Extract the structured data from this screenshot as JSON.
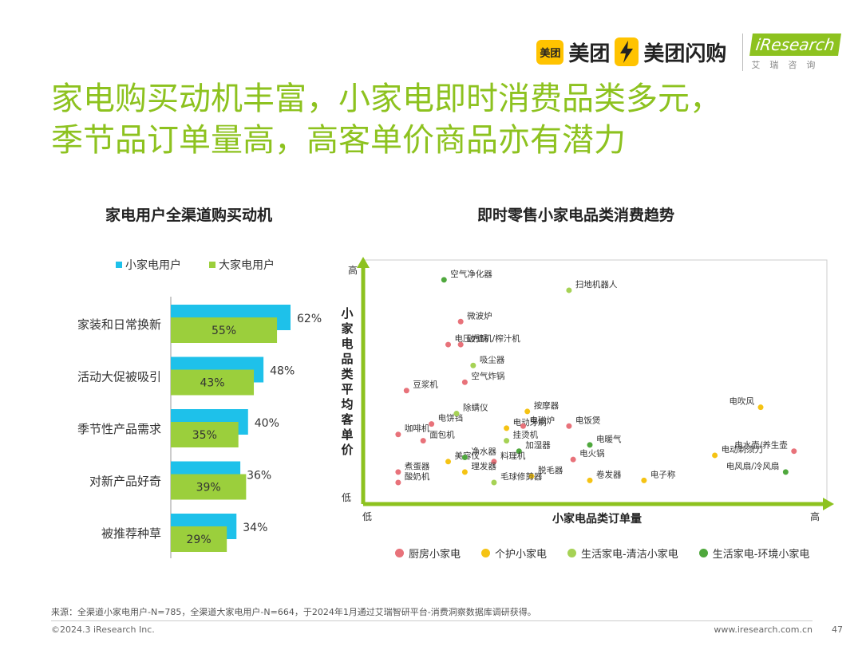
{
  "logos": {
    "meituan_badge": "美团",
    "meituan": "美团",
    "shangou": "美团闪购",
    "iresearch": "iResearch",
    "iresearch_sub": "艾瑞咨询"
  },
  "title_line1": "家电购买动机丰富，小家电即时消费品类多元，",
  "title_line2": "季节品订单量高，高客单价商品亦有潜力",
  "colors": {
    "accent": "#8dc21f",
    "small_appliance": "#1ec1ea",
    "large_appliance": "#9bcf3c",
    "kitchen": "#e8727a",
    "personal_care": "#f5c314",
    "life_clean": "#a6d255",
    "life_env": "#4fa83d"
  },
  "chart_data": [
    {
      "type": "bar",
      "title": "家电用户全渠道购买动机",
      "categories": [
        "家装和日常换新",
        "活动大促被吸引",
        "季节性产品需求",
        "对新产品好奇",
        "被推荐种草"
      ],
      "series": [
        {
          "name": "小家电用户",
          "values": [
            62,
            48,
            40,
            36,
            34
          ],
          "labels": [
            "62%",
            "48%",
            "40%",
            "36%",
            "34%"
          ]
        },
        {
          "name": "大家电用户",
          "values": [
            55,
            43,
            35,
            39,
            29
          ],
          "labels": [
            "55%",
            "43%",
            "35%",
            "39%",
            "29%"
          ]
        }
      ],
      "legend_position": "top-left"
    },
    {
      "type": "scatter",
      "title": "即时零售小家电品类消费趋势",
      "xlabel": "小家电品类订单量",
      "ylabel": "小家电品类平均客单价",
      "x_low": "低",
      "x_high": "高",
      "y_low": "低",
      "y_high": "高",
      "categories": [
        {
          "name": "厨房小家电",
          "key": "kitchen"
        },
        {
          "name": "个护小家电",
          "key": "personal_care"
        },
        {
          "name": "生活家电-清洁小家电",
          "key": "life_clean"
        },
        {
          "name": "生活家电-环境小家电",
          "key": "life_env"
        }
      ],
      "xlim": [
        0,
        100
      ],
      "ylim": [
        0,
        100
      ],
      "points": [
        {
          "label": "空气净化器",
          "cat": "life_env",
          "x": 15,
          "y": 97
        },
        {
          "label": "扫地机器人",
          "cat": "life_clean",
          "x": 45,
          "y": 92
        },
        {
          "label": "微波炉",
          "cat": "kitchen",
          "x": 19,
          "y": 77
        },
        {
          "label": "电压力锅",
          "cat": "kitchen",
          "x": 16,
          "y": 66
        },
        {
          "label": "破壁机/榨汁机",
          "cat": "kitchen",
          "x": 19,
          "y": 66
        },
        {
          "label": "吸尘器",
          "cat": "life_clean",
          "x": 22,
          "y": 56
        },
        {
          "label": "空气炸锅",
          "cat": "kitchen",
          "x": 20,
          "y": 48
        },
        {
          "label": "豆浆机",
          "cat": "kitchen",
          "x": 6,
          "y": 44
        },
        {
          "label": "按摩器",
          "cat": "personal_care",
          "x": 35,
          "y": 34
        },
        {
          "label": "电吹风",
          "cat": "personal_care",
          "x": 91,
          "y": 36
        },
        {
          "label": "电饼铛",
          "cat": "kitchen",
          "x": 12,
          "y": 28
        },
        {
          "label": "除螨仪",
          "cat": "life_clean",
          "x": 18,
          "y": 33
        },
        {
          "label": "咖啡机",
          "cat": "kitchen",
          "x": 4,
          "y": 23
        },
        {
          "label": "电动牙刷",
          "cat": "personal_care",
          "x": 30,
          "y": 26
        },
        {
          "label": "电磁炉",
          "cat": "kitchen",
          "x": 34,
          "y": 27
        },
        {
          "label": "电饭煲",
          "cat": "kitchen",
          "x": 45,
          "y": 27
        },
        {
          "label": "面包机",
          "cat": "kitchen",
          "x": 10,
          "y": 20
        },
        {
          "label": "挂烫机",
          "cat": "life_clean",
          "x": 30,
          "y": 20
        },
        {
          "label": "电暖气",
          "cat": "life_env",
          "x": 50,
          "y": 18
        },
        {
          "label": "电水壶/养生壶",
          "cat": "kitchen",
          "x": 99,
          "y": 15
        },
        {
          "label": "电动剃须刀",
          "cat": "personal_care",
          "x": 80,
          "y": 13
        },
        {
          "label": "美容仪",
          "cat": "personal_care",
          "x": 16,
          "y": 10
        },
        {
          "label": "净水器",
          "cat": "life_env",
          "x": 20,
          "y": 12
        },
        {
          "label": "加湿器",
          "cat": "life_env",
          "x": 33,
          "y": 15
        },
        {
          "label": "料理机",
          "cat": "kitchen",
          "x": 27,
          "y": 10
        },
        {
          "label": "电火锅",
          "cat": "kitchen",
          "x": 46,
          "y": 11
        },
        {
          "label": "煮蛋器",
          "cat": "kitchen",
          "x": 4,
          "y": 5
        },
        {
          "label": "理发器",
          "cat": "personal_care",
          "x": 20,
          "y": 5
        },
        {
          "label": "脱毛器",
          "cat": "personal_care",
          "x": 36,
          "y": 3
        },
        {
          "label": "毛球修剪器",
          "cat": "life_clean",
          "x": 27,
          "y": 0
        },
        {
          "label": "电子称",
          "cat": "personal_care",
          "x": 63,
          "y": 1
        },
        {
          "label": "卷发器",
          "cat": "personal_care",
          "x": 50,
          "y": 1
        },
        {
          "label": "酸奶机",
          "cat": "kitchen",
          "x": 4,
          "y": 0
        },
        {
          "label": "电风扇/冷风扇",
          "cat": "life_env",
          "x": 97,
          "y": 5
        }
      ]
    }
  ],
  "source": "来源：全渠道小家电用户-N=785，全渠道大家电用户-N=664，于2024年1月通过艾瑞智研平台-消费洞察数据库调研获得。",
  "footer_left": "©2024.3 iResearch Inc.",
  "footer_right": "www.iresearch.com.cn",
  "page_number": "47"
}
